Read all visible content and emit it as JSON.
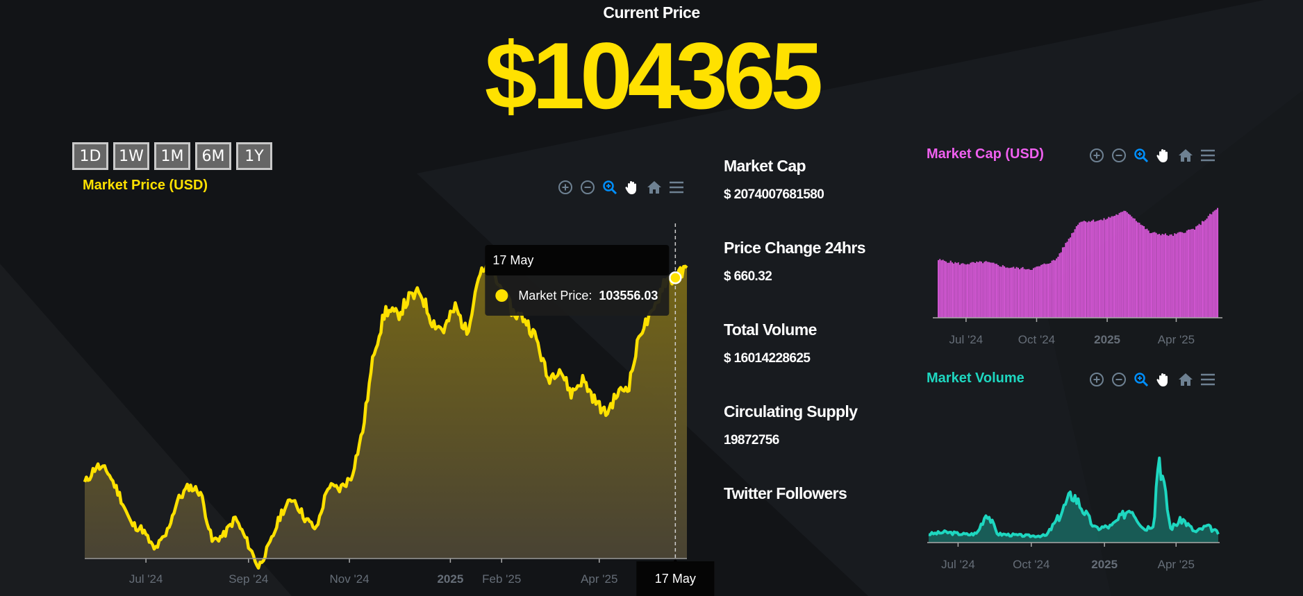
{
  "header": {
    "label": "Current Price",
    "price": "$104365"
  },
  "range_buttons": [
    "1D",
    "1W",
    "1M",
    "6M",
    "1Y"
  ],
  "main_chart": {
    "title": "Market Price (USD)"
  },
  "tooltip": {
    "date": "17 May",
    "series_label": "Market Price:",
    "value": "103556.03",
    "crosshair_label": "17 May"
  },
  "stats": [
    {
      "label": "Market Cap",
      "value": "$ 2074007681580"
    },
    {
      "label": "Price Change 24hrs",
      "value": "$ 660.32"
    },
    {
      "label": "Total Volume",
      "value": "$ 16014228625"
    },
    {
      "label": "Circulating Supply",
      "value": "19872756"
    },
    {
      "label": "Twitter Followers",
      "value": ""
    }
  ],
  "cap_chart": {
    "title": "Market Cap (USD)"
  },
  "vol_chart": {
    "title": "Market Volume"
  },
  "toolbar_icons": [
    "zoom-in-icon",
    "zoom-out-icon",
    "selection-zoom-icon",
    "pan-hand-icon",
    "home-reset-icon",
    "menu-icon"
  ],
  "colors": {
    "price": "#FFE100",
    "market_cap": "#F060F0",
    "volume": "#1ED7C0",
    "toolbar": "#6E8192",
    "toolbar_active": "#008FFB"
  },
  "chart_data": [
    {
      "type": "area",
      "title": "Market Price (USD)",
      "x_ticks": [
        "Jul '24",
        "Sep '24",
        "Nov '24",
        "2025",
        "Feb '25",
        "Apr '25"
      ],
      "x_ticks_date": [
        "2024-07-01",
        "2024-09-01",
        "2024-11-01",
        "2025-01-01",
        "2025-02-01",
        "2025-04-01"
      ],
      "x_range": [
        "2024-05-25",
        "2025-05-24"
      ],
      "y_range": [
        55000,
        112000
      ],
      "grid": false,
      "series": [
        {
          "name": "Market Price",
          "x": [
            "2024-05-25",
            "2024-06-01",
            "2024-06-08",
            "2024-06-15",
            "2024-06-22",
            "2024-06-29",
            "2024-07-06",
            "2024-07-13",
            "2024-07-20",
            "2024-07-27",
            "2024-08-03",
            "2024-08-10",
            "2024-08-17",
            "2024-08-24",
            "2024-08-31",
            "2024-09-07",
            "2024-09-14",
            "2024-09-21",
            "2024-09-28",
            "2024-10-05",
            "2024-10-12",
            "2024-10-19",
            "2024-10-26",
            "2024-11-02",
            "2024-11-09",
            "2024-11-16",
            "2024-11-23",
            "2024-11-30",
            "2024-12-07",
            "2024-12-14",
            "2024-12-21",
            "2024-12-28",
            "2025-01-04",
            "2025-01-11",
            "2025-01-18",
            "2025-01-25",
            "2025-02-01",
            "2025-02-08",
            "2025-02-15",
            "2025-02-22",
            "2025-03-01",
            "2025-03-08",
            "2025-03-15",
            "2025-03-22",
            "2025-03-29",
            "2025-04-05",
            "2025-04-12",
            "2025-04-19",
            "2025-04-26",
            "2025-05-03",
            "2025-05-10",
            "2025-05-17",
            "2025-05-24"
          ],
          "y": [
            68000,
            71000,
            70000,
            66000,
            61000,
            60000,
            56500,
            59000,
            65000,
            67500,
            66500,
            58000,
            59000,
            62000,
            58000,
            53500,
            57500,
            63000,
            65500,
            62000,
            60000,
            67500,
            67000,
            69000,
            77000,
            91000,
            98000,
            97000,
            100000,
            101000,
            96000,
            94500,
            98500,
            94000,
            104000,
            105000,
            101500,
            97500,
            96500,
            93000,
            86000,
            88000,
            83500,
            86000,
            82500,
            80000,
            83500,
            85000,
            94500,
            97000,
            103000,
            103556,
            105000
          ]
        }
      ]
    },
    {
      "type": "bar",
      "title": "Market Cap (USD)",
      "x_ticks": [
        "Jul '24",
        "Oct '24",
        "2025",
        "Apr '25"
      ],
      "x_ticks_date": [
        "2024-07-01",
        "2024-10-01",
        "2025-01-01",
        "2025-04-01"
      ],
      "x_range": [
        "2024-05-25",
        "2025-05-24"
      ],
      "grid": false,
      "series": [
        {
          "name": "Market Cap",
          "x": [
            "2024-05-25",
            "2024-06-25",
            "2024-07-25",
            "2024-08-25",
            "2024-09-25",
            "2024-10-25",
            "2024-11-25",
            "2024-12-25",
            "2025-01-25",
            "2025-02-25",
            "2025-03-25",
            "2025-04-25",
            "2025-05-24"
          ],
          "y": [
            1.33,
            1.27,
            1.3,
            1.22,
            1.2,
            1.33,
            1.88,
            1.9,
            2.03,
            1.72,
            1.68,
            1.78,
            2.07
          ]
        }
      ]
    },
    {
      "type": "area",
      "title": "Market Volume",
      "x_ticks": [
        "Jul '24",
        "Oct '24",
        "2025",
        "Apr '25"
      ],
      "x_ticks_date": [
        "2024-07-01",
        "2024-10-01",
        "2025-01-01",
        "2025-04-01"
      ],
      "x_range": [
        "2024-05-25",
        "2025-05-24"
      ],
      "grid": false,
      "series": [
        {
          "name": "Market Volume",
          "x": [
            "2024-05-25",
            "2024-06-15",
            "2024-07-01",
            "2024-07-15",
            "2024-07-25",
            "2024-08-06",
            "2024-08-20",
            "2024-09-10",
            "2024-10-01",
            "2024-10-20",
            "2024-11-05",
            "2024-11-12",
            "2024-11-22",
            "2024-12-06",
            "2024-12-20",
            "2025-01-10",
            "2025-02-03",
            "2025-02-20",
            "2025-03-04",
            "2025-03-10",
            "2025-03-25",
            "2025-04-09",
            "2025-04-25",
            "2025-05-10",
            "2025-05-24"
          ],
          "y": [
            18,
            22,
            19,
            17,
            20,
            65,
            18,
            16,
            14,
            15,
            55,
            78,
            105,
            68,
            30,
            35,
            75,
            28,
            40,
            195,
            30,
            50,
            22,
            35,
            20
          ]
        }
      ]
    }
  ]
}
